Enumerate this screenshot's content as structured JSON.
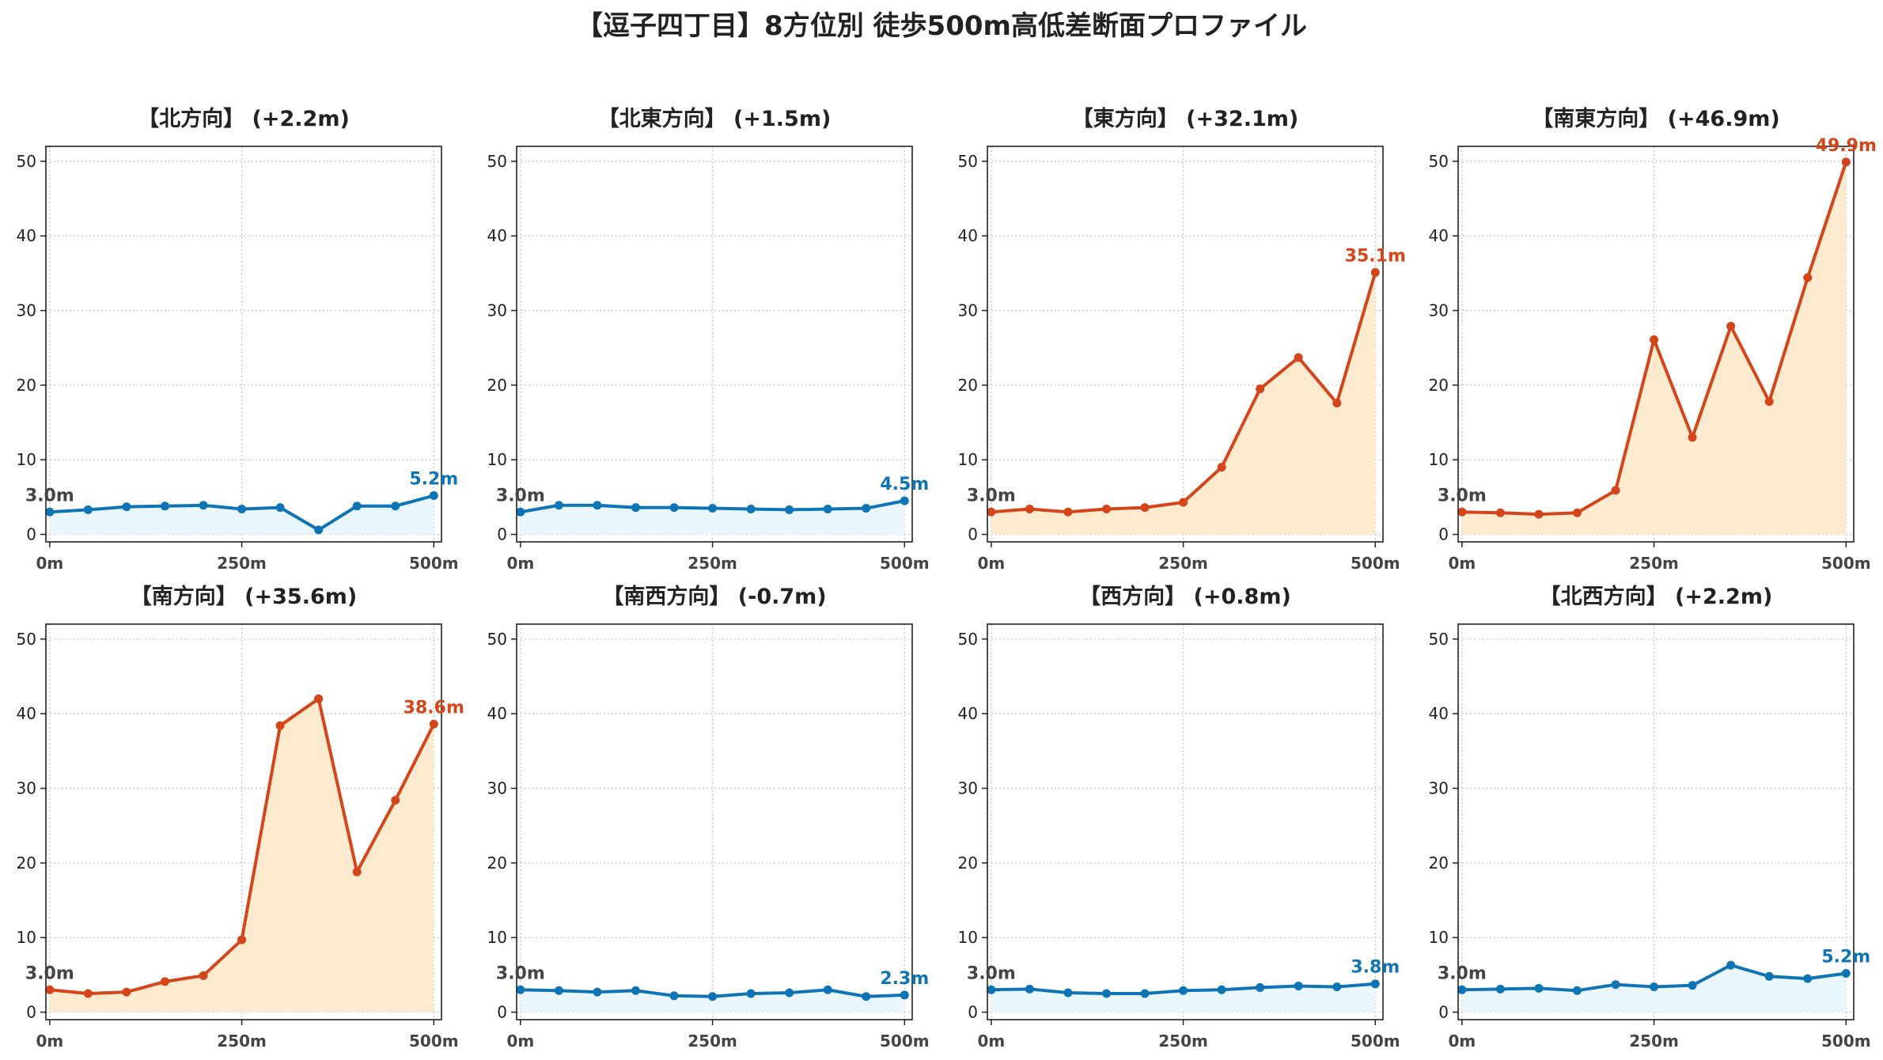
{
  "title": "【逗子四丁目】8方位別 徒歩500m高低差断面プロファイル",
  "colors": {
    "flat_line": "#0f74b6",
    "flat_fill": "#e9f7fc",
    "hill_line": "#d5451a",
    "hill_fill": "#fdebd0",
    "grid": "#c8c8c8",
    "axis": "#222222",
    "start_label": "#444444"
  },
  "chart_data": [
    {
      "type": "area",
      "title": "【北方向】 (+2.2m)",
      "style": "flat",
      "x": [
        0,
        50,
        100,
        150,
        200,
        250,
        300,
        350,
        400,
        450,
        500
      ],
      "y": [
        3.0,
        3.3,
        3.7,
        3.8,
        3.9,
        3.4,
        3.6,
        0.6,
        3.8,
        3.8,
        5.2
      ],
      "xticks": [
        "0m",
        "250m",
        "500m"
      ],
      "yticks": [
        0,
        10,
        20,
        30,
        40,
        50
      ],
      "ylim": [
        -1,
        52
      ],
      "xlim": [
        -5,
        510
      ],
      "grid": true,
      "start_label": "3.0m",
      "end_label": "5.2m"
    },
    {
      "type": "area",
      "title": "【北東方向】 (+1.5m)",
      "style": "flat",
      "x": [
        0,
        50,
        100,
        150,
        200,
        250,
        300,
        350,
        400,
        450,
        500
      ],
      "y": [
        3.0,
        3.9,
        3.9,
        3.6,
        3.6,
        3.5,
        3.4,
        3.3,
        3.4,
        3.5,
        4.5
      ],
      "xticks": [
        "0m",
        "250m",
        "500m"
      ],
      "yticks": [
        0,
        10,
        20,
        30,
        40,
        50
      ],
      "ylim": [
        -1,
        52
      ],
      "xlim": [
        -5,
        510
      ],
      "grid": true,
      "start_label": "3.0m",
      "end_label": "4.5m"
    },
    {
      "type": "area",
      "title": "【東方向】 (+32.1m)",
      "style": "hill",
      "x": [
        0,
        50,
        100,
        150,
        200,
        250,
        300,
        350,
        400,
        450,
        500
      ],
      "y": [
        3.0,
        3.4,
        3.0,
        3.4,
        3.6,
        4.3,
        9.0,
        19.5,
        23.7,
        17.6,
        35.1
      ],
      "xticks": [
        "0m",
        "250m",
        "500m"
      ],
      "yticks": [
        0,
        10,
        20,
        30,
        40,
        50
      ],
      "ylim": [
        -1,
        52
      ],
      "xlim": [
        -5,
        510
      ],
      "grid": true,
      "start_label": "3.0m",
      "end_label": "35.1m"
    },
    {
      "type": "area",
      "title": "【南東方向】 (+46.9m)",
      "style": "hill",
      "x": [
        0,
        50,
        100,
        150,
        200,
        250,
        300,
        350,
        400,
        450,
        500
      ],
      "y": [
        3.0,
        2.9,
        2.7,
        2.9,
        5.9,
        26.1,
        13.0,
        27.9,
        17.8,
        34.4,
        49.9
      ],
      "xticks": [
        "0m",
        "250m",
        "500m"
      ],
      "yticks": [
        0,
        10,
        20,
        30,
        40,
        50
      ],
      "ylim": [
        -1,
        52
      ],
      "xlim": [
        -5,
        510
      ],
      "grid": true,
      "start_label": "3.0m",
      "end_label": "49.9m"
    },
    {
      "type": "area",
      "title": "【南方向】 (+35.6m)",
      "style": "hill",
      "x": [
        0,
        50,
        100,
        150,
        200,
        250,
        300,
        350,
        400,
        450,
        500
      ],
      "y": [
        3.0,
        2.5,
        2.7,
        4.1,
        4.9,
        9.7,
        38.4,
        42.0,
        18.8,
        28.4,
        38.6
      ],
      "xticks": [
        "0m",
        "250m",
        "500m"
      ],
      "yticks": [
        0,
        10,
        20,
        30,
        40,
        50
      ],
      "ylim": [
        -1,
        52
      ],
      "xlim": [
        -5,
        510
      ],
      "grid": true,
      "start_label": "3.0m",
      "end_label": "38.6m"
    },
    {
      "type": "area",
      "title": "【南西方向】 (-0.7m)",
      "style": "flat",
      "x": [
        0,
        50,
        100,
        150,
        200,
        250,
        300,
        350,
        400,
        450,
        500
      ],
      "y": [
        3.0,
        2.9,
        2.7,
        2.9,
        2.2,
        2.1,
        2.5,
        2.6,
        3.0,
        2.1,
        2.3
      ],
      "xticks": [
        "0m",
        "250m",
        "500m"
      ],
      "yticks": [
        0,
        10,
        20,
        30,
        40,
        50
      ],
      "ylim": [
        -1,
        52
      ],
      "xlim": [
        -5,
        510
      ],
      "grid": true,
      "start_label": "3.0m",
      "end_label": "2.3m"
    },
    {
      "type": "area",
      "title": "【西方向】 (+0.8m)",
      "style": "flat",
      "x": [
        0,
        50,
        100,
        150,
        200,
        250,
        300,
        350,
        400,
        450,
        500
      ],
      "y": [
        3.0,
        3.1,
        2.6,
        2.5,
        2.5,
        2.9,
        3.0,
        3.3,
        3.5,
        3.4,
        3.8
      ],
      "xticks": [
        "0m",
        "250m",
        "500m"
      ],
      "yticks": [
        0,
        10,
        20,
        30,
        40,
        50
      ],
      "ylim": [
        -1,
        52
      ],
      "xlim": [
        -5,
        510
      ],
      "grid": true,
      "start_label": "3.0m",
      "end_label": "3.8m"
    },
    {
      "type": "area",
      "title": "【北西方向】 (+2.2m)",
      "style": "flat",
      "x": [
        0,
        50,
        100,
        150,
        200,
        250,
        300,
        350,
        400,
        450,
        500
      ],
      "y": [
        3.0,
        3.1,
        3.2,
        2.9,
        3.7,
        3.4,
        3.6,
        6.3,
        4.8,
        4.5,
        5.2
      ],
      "xticks": [
        "0m",
        "250m",
        "500m"
      ],
      "yticks": [
        0,
        10,
        20,
        30,
        40,
        50
      ],
      "ylim": [
        -1,
        52
      ],
      "xlim": [
        -5,
        510
      ],
      "grid": true,
      "start_label": "3.0m",
      "end_label": "5.2m"
    }
  ]
}
